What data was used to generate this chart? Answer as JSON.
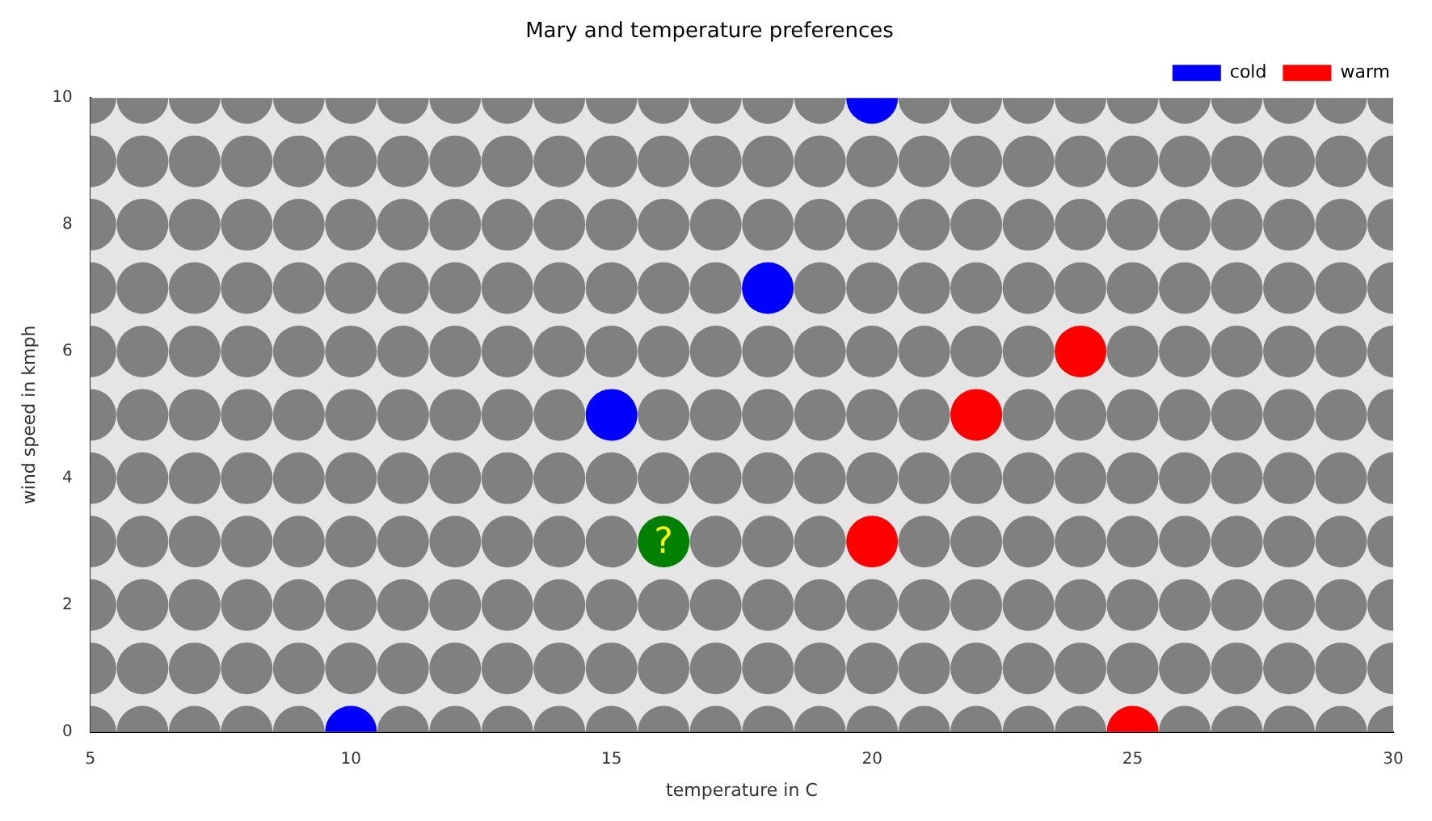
{
  "chart_data": {
    "type": "scatter",
    "title": "Mary and temperature preferences",
    "xlabel": "temperature in C",
    "ylabel": "wind speed in kmph",
    "xlim": [
      5,
      30
    ],
    "xticks": [
      5,
      10,
      15,
      20,
      25,
      30
    ],
    "ylim": [
      0,
      10
    ],
    "yticks": [
      0,
      2,
      4,
      6,
      8,
      10
    ],
    "grid": false,
    "legend": "top right",
    "marker": "circle",
    "series": [
      {
        "color": "#808080",
        "x": [
          5,
          6,
          7,
          8,
          9,
          11,
          12,
          13,
          14,
          15,
          16,
          17,
          18,
          19,
          20,
          21,
          22,
          23,
          24,
          26,
          27,
          28,
          29,
          30,
          5,
          6,
          7,
          8,
          9,
          10,
          11,
          12,
          13,
          14,
          15,
          16,
          17,
          18,
          19,
          20,
          21,
          22,
          23,
          24,
          25,
          26,
          27,
          28,
          29,
          30,
          5,
          6,
          7,
          8,
          9,
          10,
          11,
          12,
          13,
          14,
          15,
          16,
          17,
          18,
          19,
          20,
          21,
          22,
          23,
          24,
          25,
          26,
          27,
          28,
          29,
          30,
          5,
          6,
          7,
          8,
          9,
          10,
          11,
          12,
          13,
          14,
          15,
          17,
          18,
          19,
          21,
          22,
          23,
          24,
          25,
          26,
          27,
          28,
          29,
          30,
          5,
          6,
          7,
          8,
          9,
          10,
          11,
          12,
          13,
          14,
          15,
          16,
          17,
          18,
          19,
          20,
          21,
          22,
          23,
          24,
          25,
          26,
          27,
          28,
          29,
          30,
          5,
          6,
          7,
          8,
          9,
          10,
          11,
          12,
          13,
          14,
          16,
          17,
          18,
          19,
          20,
          21,
          23,
          24,
          25,
          26,
          27,
          28,
          29,
          30,
          5,
          6,
          7,
          8,
          9,
          10,
          11,
          12,
          13,
          14,
          15,
          16,
          17,
          18,
          19,
          20,
          21,
          22,
          23,
          25,
          26,
          27,
          28,
          29,
          30,
          5,
          6,
          7,
          8,
          9,
          10,
          11,
          12,
          13,
          14,
          15,
          16,
          17,
          19,
          20,
          21,
          22,
          23,
          24,
          25,
          26,
          27,
          28,
          29,
          30,
          5,
          6,
          7,
          8,
          9,
          10,
          11,
          12,
          13,
          14,
          15,
          16,
          17,
          18,
          19,
          20,
          21,
          22,
          23,
          24,
          25,
          26,
          27,
          28,
          29,
          30,
          5,
          6,
          7,
          8,
          9,
          10,
          11,
          12,
          13,
          14,
          15,
          16,
          17,
          18,
          19,
          20,
          21,
          22,
          23,
          24,
          25,
          26,
          27,
          28,
          29,
          30,
          5,
          6,
          7,
          8,
          9,
          10,
          11,
          12,
          13,
          14,
          15,
          16,
          17,
          18,
          19,
          21,
          22,
          23,
          24,
          25,
          26,
          27,
          28,
          29,
          30
        ],
        "values": [
          0,
          0,
          0,
          0,
          0,
          0,
          0,
          0,
          0,
          0,
          0,
          0,
          0,
          0,
          0,
          0,
          0,
          0,
          0,
          0,
          0,
          0,
          0,
          0,
          1,
          1,
          1,
          1,
          1,
          1,
          1,
          1,
          1,
          1,
          1,
          1,
          1,
          1,
          1,
          1,
          1,
          1,
          1,
          1,
          1,
          1,
          1,
          1,
          1,
          1,
          2,
          2,
          2,
          2,
          2,
          2,
          2,
          2,
          2,
          2,
          2,
          2,
          2,
          2,
          2,
          2,
          2,
          2,
          2,
          2,
          2,
          2,
          2,
          2,
          2,
          2,
          3,
          3,
          3,
          3,
          3,
          3,
          3,
          3,
          3,
          3,
          3,
          3,
          3,
          3,
          3,
          3,
          3,
          3,
          3,
          3,
          3,
          3,
          3,
          3,
          4,
          4,
          4,
          4,
          4,
          4,
          4,
          4,
          4,
          4,
          4,
          4,
          4,
          4,
          4,
          4,
          4,
          4,
          4,
          4,
          4,
          4,
          4,
          4,
          4,
          4,
          5,
          5,
          5,
          5,
          5,
          5,
          5,
          5,
          5,
          5,
          5,
          5,
          5,
          5,
          5,
          5,
          5,
          5,
          5,
          5,
          5,
          5,
          5,
          5,
          6,
          6,
          6,
          6,
          6,
          6,
          6,
          6,
          6,
          6,
          6,
          6,
          6,
          6,
          6,
          6,
          6,
          6,
          6,
          6,
          6,
          6,
          6,
          6,
          6,
          7,
          7,
          7,
          7,
          7,
          7,
          7,
          7,
          7,
          7,
          7,
          7,
          7,
          7,
          7,
          7,
          7,
          7,
          7,
          7,
          7,
          7,
          7,
          7,
          7,
          8,
          8,
          8,
          8,
          8,
          8,
          8,
          8,
          8,
          8,
          8,
          8,
          8,
          8,
          8,
          8,
          8,
          8,
          8,
          8,
          8,
          8,
          8,
          8,
          8,
          8,
          9,
          9,
          9,
          9,
          9,
          9,
          9,
          9,
          9,
          9,
          9,
          9,
          9,
          9,
          9,
          9,
          9,
          9,
          9,
          9,
          9,
          9,
          9,
          9,
          9,
          9,
          10,
          10,
          10,
          10,
          10,
          10,
          10,
          10,
          10,
          10,
          10,
          10,
          10,
          10,
          10,
          10,
          10,
          10,
          10,
          10,
          10,
          10,
          10,
          10,
          10
        ]
      },
      {
        "name": "cold",
        "color": "#0000ff",
        "x": [
          20,
          18,
          15,
          10
        ],
        "values": [
          10,
          7,
          5,
          0
        ]
      },
      {
        "name": "warm",
        "color": "#ff0000",
        "x": [
          24,
          22,
          20,
          25
        ],
        "values": [
          6,
          5,
          3,
          0
        ]
      },
      {
        "color": "#008000",
        "x": [
          16
        ],
        "values": [
          3
        ]
      }
    ],
    "annotations": [
      {
        "text": "?",
        "x": 16,
        "y": 3
      }
    ]
  }
}
